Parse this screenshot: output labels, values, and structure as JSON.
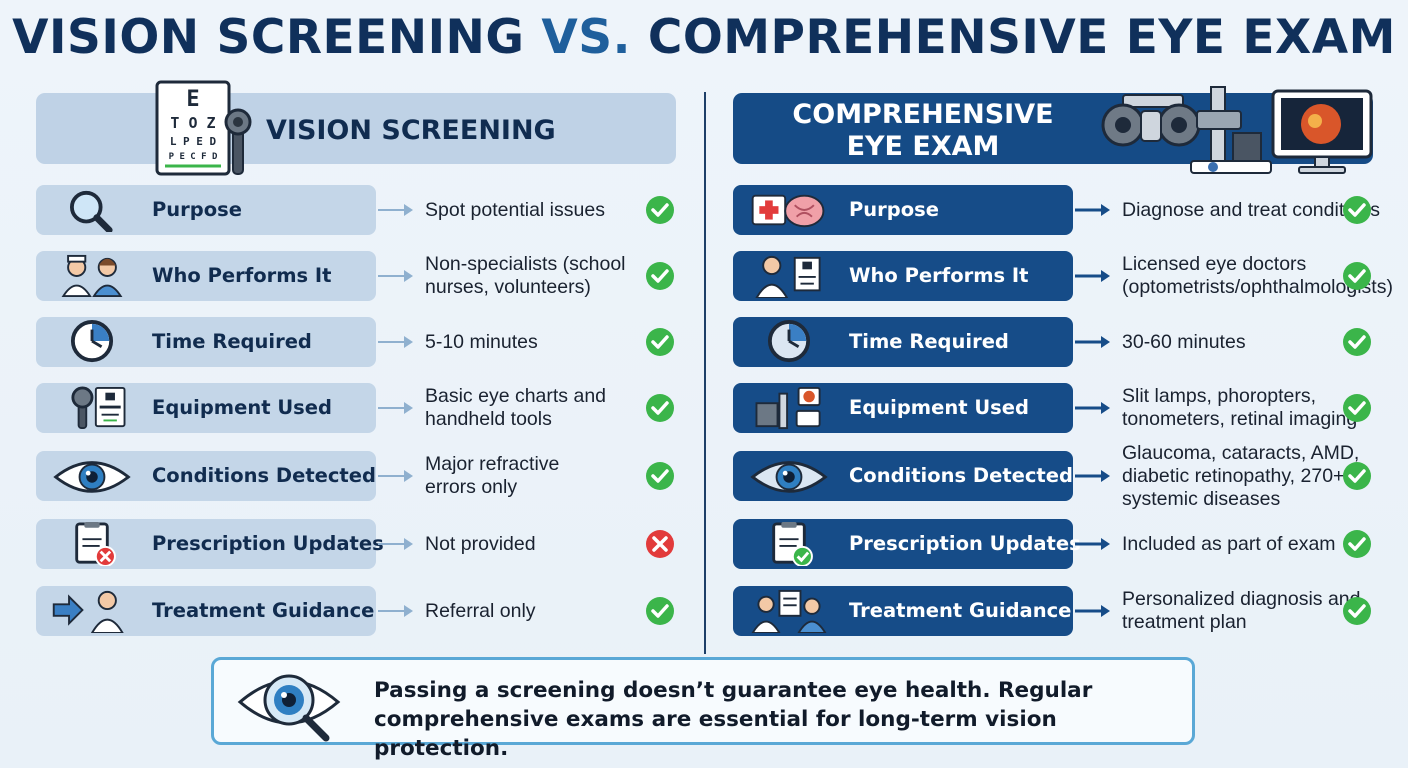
{
  "title": {
    "part1": "VISION SCREENING",
    "vs": "VS.",
    "part2": "COMPREHENSIVE EYE EXAM"
  },
  "colors": {
    "navy": "#10305b",
    "accent": "#1f5f9c",
    "left_pill": "#c4d6e8",
    "right_pill": "#164c88",
    "check": "#3bb54a",
    "cross": "#e23b3b"
  },
  "left": {
    "header": "VISION SCREENING",
    "header_icon": "eye-chart-icon",
    "chart_letters": [
      "E",
      "T O Z",
      "L P E D",
      "P E C F D"
    ],
    "rows": [
      {
        "label": "Purpose",
        "value": [
          "Spot potential issues"
        ],
        "status": "check",
        "icon": "magnifier-icon"
      },
      {
        "label": "Who Performs It",
        "value": [
          "Non-specialists (school",
          "nurses, volunteers)"
        ],
        "status": "check",
        "icon": "nurses-icon"
      },
      {
        "label": "Time Required",
        "value": [
          "5-10 minutes"
        ],
        "status": "check",
        "icon": "clock-icon"
      },
      {
        "label": "Equipment Used",
        "value": [
          "Basic eye charts and",
          "handheld tools"
        ],
        "status": "check",
        "icon": "occluder-chart-icon"
      },
      {
        "label": "Conditions Detected",
        "value": [
          "Major refractive",
          "errors only"
        ],
        "status": "check",
        "icon": "eye-icon"
      },
      {
        "label": "Prescription Updates",
        "value": [
          "Not provided"
        ],
        "status": "cross",
        "icon": "prescription-cross-icon"
      },
      {
        "label": "Treatment Guidance",
        "value": [
          "Referral only"
        ],
        "status": "check",
        "icon": "referral-doctor-icon"
      }
    ]
  },
  "right": {
    "header_lines": [
      "COMPREHENSIVE",
      "EYE EXAM"
    ],
    "header_icon": "exam-equipment-icon",
    "rows": [
      {
        "label": "Purpose",
        "value": [
          "Diagnose and treat conditions"
        ],
        "status": "check",
        "icon": "medical-brain-icon"
      },
      {
        "label": "Who Performs It",
        "value": [
          "Licensed eye doctors",
          "(optometrists/ophthalmologists)"
        ],
        "status": "check",
        "icon": "doctor-icon"
      },
      {
        "label": "Time Required",
        "value": [
          "30-60 minutes"
        ],
        "status": "check",
        "icon": "clock-icon"
      },
      {
        "label": "Equipment Used",
        "value": [
          "Slit lamps, phoropters,",
          "tonometers, retinal imaging"
        ],
        "status": "check",
        "icon": "slit-lamp-icon"
      },
      {
        "label": "Conditions Detected",
        "value": [
          "Glaucoma, cataracts, AMD,",
          "diabetic retinopathy, 270+",
          "systemic diseases"
        ],
        "status": "check",
        "icon": "eye-icon"
      },
      {
        "label": "Prescription Updates",
        "value": [
          "Included as part of exam"
        ],
        "status": "check",
        "icon": "prescription-check-icon"
      },
      {
        "label": "Treatment Guidance",
        "value": [
          "Personalized diagnosis and",
          "treatment plan"
        ],
        "status": "check",
        "icon": "consultation-icon"
      }
    ]
  },
  "callout": {
    "icon": "eye-magnifier-icon",
    "lines": [
      "Passing a screening doesn’t guarantee eye health. Regular",
      "comprehensive exams are essential for long-term vision protection."
    ]
  }
}
